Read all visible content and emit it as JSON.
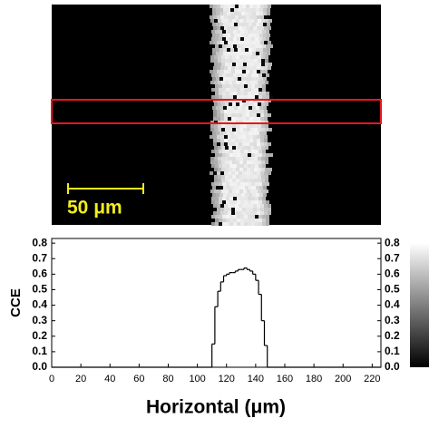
{
  "chart_data": {
    "type": "line",
    "scalebar_label": "50 μm",
    "ylabel": "CCE",
    "xlabel": "Horizontal (μm)",
    "x": [
      0,
      110,
      112,
      114,
      116,
      118,
      120,
      122,
      124,
      126,
      128,
      130,
      132,
      134,
      136,
      138,
      140,
      142,
      144,
      146,
      148
    ],
    "series": [
      {
        "color": "#000000",
        "values": [
          0,
          0.15,
          0.39,
          0.49,
          0.55,
          0.59,
          0.6,
          0.61,
          0.61,
          0.62,
          0.63,
          0.63,
          0.64,
          0.63,
          0.62,
          0.6,
          0.56,
          0.47,
          0.3,
          0.14,
          0
        ]
      }
    ],
    "xlim": [
      0,
      226
    ],
    "ylim": [
      0,
      0.83
    ],
    "xticks": [
      0,
      20,
      40,
      60,
      80,
      100,
      120,
      140,
      160,
      180,
      200,
      220
    ],
    "yticks": [
      {
        "value": 0,
        "label": "0.0"
      },
      0.1,
      0.2,
      0.3,
      0.4,
      0.5,
      0.6,
      0.7,
      0.8
    ],
    "colorbar": true
  }
}
